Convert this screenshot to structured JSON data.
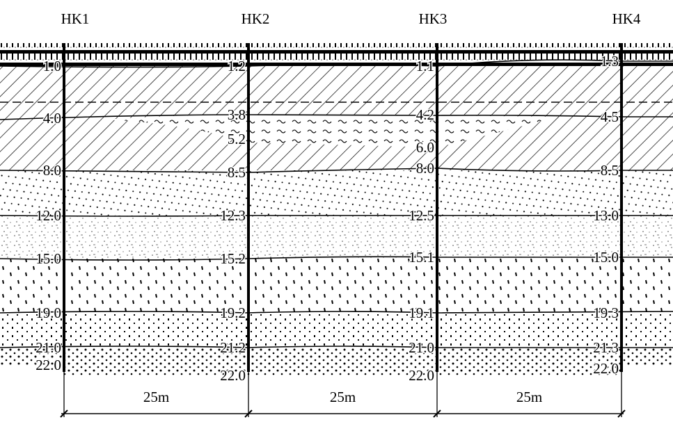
{
  "boreholes": [
    {
      "label": "HK1",
      "depths": [
        "1.0",
        "4.0",
        "8.0",
        "12.0",
        "15.0",
        "19.0",
        "21.0",
        "22.0"
      ]
    },
    {
      "label": "HK2",
      "depths": [
        "1.2",
        "3.8",
        "5.2",
        "8.5",
        "12.3",
        "15.2",
        "19.2",
        "21.2",
        "22.0"
      ]
    },
    {
      "label": "HK3",
      "depths": [
        "1.1",
        "4.2",
        "6.0",
        "8.0",
        "12.5",
        "15.1",
        "19.1",
        "21.0",
        "22.0"
      ]
    },
    {
      "label": "HK4",
      "depths": [
        "1.3",
        "4.5",
        "8.5",
        "13.0",
        "15.0",
        "19.3",
        "21.3",
        "22.0"
      ]
    }
  ],
  "spacings": [
    "25m",
    "25m",
    "25m"
  ]
}
